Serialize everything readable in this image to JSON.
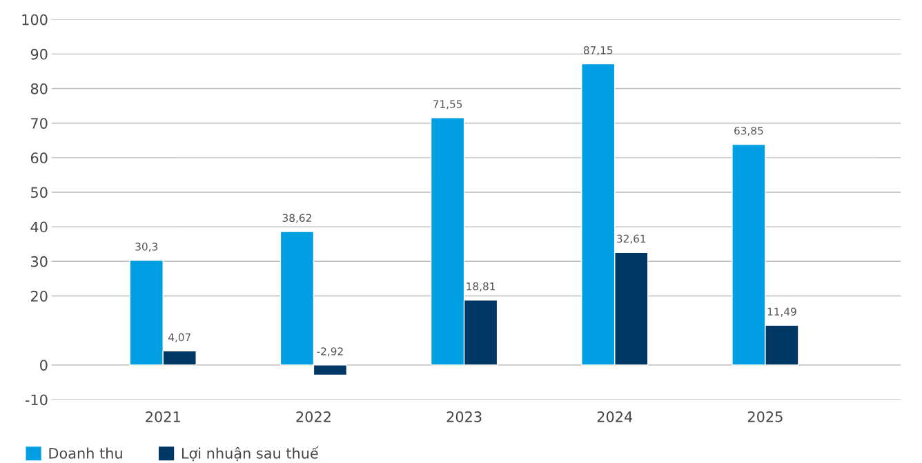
{
  "chart_data": {
    "type": "bar",
    "categories": [
      "2021",
      "2022",
      "2023",
      "2024",
      "2025"
    ],
    "series": [
      {
        "name": "Doanh thu",
        "color": "#009fe3",
        "values": [
          30.3,
          38.62,
          71.55,
          87.15,
          63.85
        ],
        "value_labels": [
          "30,3",
          "38,62",
          "71,55",
          "87,15",
          "63,85"
        ]
      },
      {
        "name": "Lợi nhuận sau thuế",
        "color": "#003764",
        "values": [
          4.07,
          -2.92,
          18.81,
          32.61,
          11.49
        ],
        "value_labels": [
          "4,07",
          "-2,92",
          "18,81",
          "32,61",
          "11,49"
        ]
      }
    ],
    "ylim": [
      -10,
      100
    ],
    "yticks": [
      -10,
      0,
      20,
      30,
      40,
      50,
      60,
      70,
      80,
      90,
      100
    ],
    "grid": "y",
    "legend": "bottom left"
  }
}
